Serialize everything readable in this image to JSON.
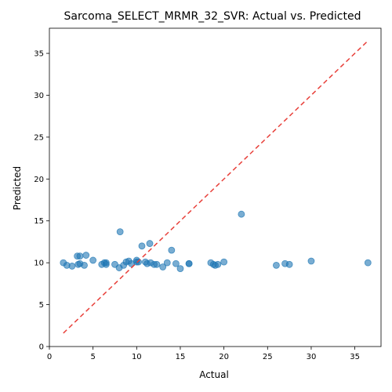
{
  "chart_data": {
    "type": "scatter",
    "title": "Sarcoma_SELECT_MRMR_32_SVR: Actual vs. Predicted",
    "xlabel": "Actual",
    "ylabel": "Predicted",
    "xlim": [
      0,
      38
    ],
    "ylim": [
      0,
      38
    ],
    "xticks": [
      0,
      5,
      10,
      15,
      20,
      25,
      30,
      35
    ],
    "yticks": [
      0,
      5,
      10,
      15,
      20,
      25,
      30,
      35
    ],
    "grid": false,
    "point_color": "#1f77b4",
    "reference_line": {
      "from": [
        1.6,
        1.6
      ],
      "to": [
        36.5,
        36.5
      ],
      "color": "#e8403a",
      "style": "dashed"
    },
    "points": [
      [
        1.6,
        10.0
      ],
      [
        2.0,
        9.7
      ],
      [
        2.6,
        9.6
      ],
      [
        3.2,
        10.8
      ],
      [
        3.3,
        9.8
      ],
      [
        3.5,
        10.8
      ],
      [
        3.5,
        9.9
      ],
      [
        4.0,
        9.7
      ],
      [
        4.2,
        10.9
      ],
      [
        5.0,
        10.3
      ],
      [
        6.0,
        9.8
      ],
      [
        6.3,
        10.0
      ],
      [
        6.5,
        10.0
      ],
      [
        6.5,
        9.8
      ],
      [
        7.5,
        9.8
      ],
      [
        8.0,
        9.4
      ],
      [
        8.1,
        13.7
      ],
      [
        8.5,
        9.7
      ],
      [
        8.8,
        10.1
      ],
      [
        9.1,
        10.2
      ],
      [
        9.4,
        9.9
      ],
      [
        10.0,
        10.3
      ],
      [
        10.0,
        10.1
      ],
      [
        10.2,
        10.1
      ],
      [
        10.6,
        12.0
      ],
      [
        11.0,
        10.1
      ],
      [
        11.2,
        9.9
      ],
      [
        11.5,
        12.3
      ],
      [
        11.6,
        10.0
      ],
      [
        12.0,
        9.8
      ],
      [
        12.3,
        9.8
      ],
      [
        13.0,
        9.5
      ],
      [
        13.5,
        10.0
      ],
      [
        14.0,
        11.5
      ],
      [
        14.5,
        9.9
      ],
      [
        15.0,
        9.3
      ],
      [
        16.0,
        9.9
      ],
      [
        16.0,
        9.9
      ],
      [
        18.5,
        10.0
      ],
      [
        18.8,
        9.8
      ],
      [
        19.0,
        9.7
      ],
      [
        19.3,
        9.8
      ],
      [
        20.0,
        10.1
      ],
      [
        22.0,
        15.8
      ],
      [
        26.0,
        9.7
      ],
      [
        27.0,
        9.9
      ],
      [
        27.5,
        9.8
      ],
      [
        30.0,
        10.2
      ],
      [
        36.5,
        10.0
      ]
    ]
  }
}
